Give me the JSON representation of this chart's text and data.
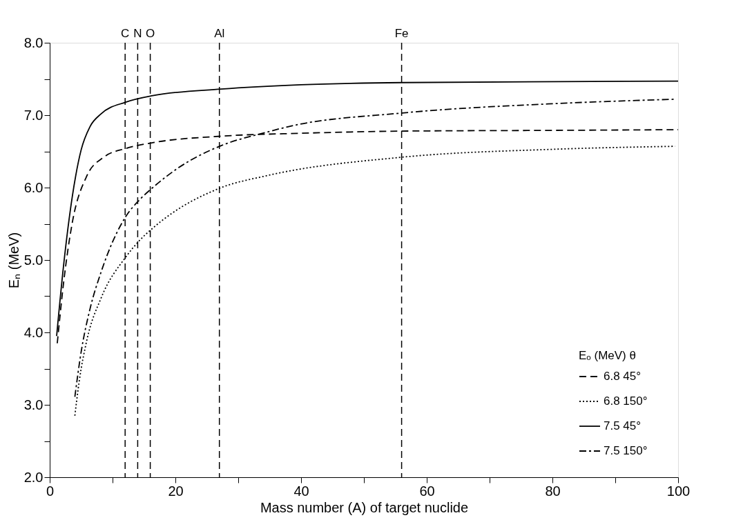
{
  "chart_data": {
    "type": "line",
    "xlabel": "Mass number (A) of target nuclide",
    "ylabel": "Eₙ   (MeV)",
    "legend_title": "Eₒ (MeV)   θ",
    "legend": "bottom right",
    "grid": false,
    "xlim": [
      0,
      100
    ],
    "ylim": [
      2,
      8
    ],
    "xticks": [
      0,
      {
        "value": 10,
        "label": null
      },
      20,
      {
        "value": 30,
        "label": null
      },
      40,
      {
        "value": 50,
        "label": null
      },
      60,
      {
        "value": 70,
        "label": null
      },
      80,
      {
        "value": 90,
        "label": null
      },
      100
    ],
    "yticks": [
      {
        "value": 2,
        "label": "2.0"
      },
      {
        "value": 2.5,
        "label": null
      },
      {
        "value": 3,
        "label": "3.0"
      },
      {
        "value": 3.5,
        "label": null
      },
      {
        "value": 4,
        "label": "4.0"
      },
      {
        "value": 4.5,
        "label": null
      },
      {
        "value": 5,
        "label": "5.0"
      },
      {
        "value": 5.5,
        "label": null
      },
      {
        "value": 6,
        "label": "6.0"
      },
      {
        "value": 6.5,
        "label": null
      },
      {
        "value": 7,
        "label": "7.0"
      },
      {
        "value": 7.5,
        "label": null
      },
      {
        "value": 8,
        "label": "8.0"
      }
    ],
    "series": [
      {
        "name": "6.8      45°",
        "color": "#000000",
        "line_style": "dashed",
        "x": [
          1.2,
          2.2,
          3.6,
          5.9,
          8.6,
          12.1,
          16.4,
          27.3,
          40,
          56,
          80,
          100
        ],
        "values": [
          3.85,
          4.68,
          5.52,
          6.16,
          6.42,
          6.54,
          6.62,
          6.71,
          6.75,
          6.78,
          6.79,
          6.8
        ]
      },
      {
        "name": "6.8    150°",
        "color": "#000000",
        "line_style": "dotted",
        "x": [
          4,
          4.7,
          5.9,
          8.2,
          12.1,
          14.4,
          16.4,
          27.3,
          34.3,
          56.1,
          80.5,
          99.5
        ],
        "values": [
          2.85,
          3.33,
          3.89,
          4.48,
          5.04,
          5.28,
          5.44,
          6.0,
          6.16,
          6.42,
          6.53,
          6.57
        ]
      },
      {
        "name": "7.5      45°",
        "color": "#000000",
        "line_style": "solid",
        "x": [
          1.1,
          2.2,
          3.6,
          5,
          6.4,
          8.2,
          12.1,
          16.4,
          27.3,
          40,
          56,
          100
        ],
        "values": [
          3.95,
          4.92,
          5.88,
          6.52,
          6.84,
          7.02,
          7.18,
          7.27,
          7.36,
          7.42,
          7.45,
          7.47
        ]
      },
      {
        "name": "7.5    150°",
        "color": "#000000",
        "line_style": "dashdot",
        "x": [
          4,
          5,
          6.4,
          8.2,
          12.1,
          14.4,
          16.4,
          20.6,
          27.3,
          34.3,
          37.9,
          56.1,
          80.5,
          99.5
        ],
        "values": [
          3.11,
          3.73,
          4.32,
          4.84,
          5.6,
          5.84,
          6.0,
          6.28,
          6.58,
          6.76,
          6.84,
          7.03,
          7.16,
          7.22
        ]
      }
    ],
    "ref_lines": [
      {
        "axis": "x",
        "value": 12,
        "label": "C",
        "color": "#000000",
        "line_style": "dashed"
      },
      {
        "axis": "x",
        "value": 14,
        "label": "N",
        "color": "#000000",
        "line_style": "dashed"
      },
      {
        "axis": "x",
        "value": 16,
        "label": "O",
        "color": "#000000",
        "line_style": "dashed"
      },
      {
        "axis": "x",
        "value": 27,
        "label": "Al",
        "color": "#000000",
        "line_style": "dashed"
      },
      {
        "axis": "x",
        "value": 56,
        "label": "Fe",
        "color": "#000000",
        "line_style": "dashed"
      }
    ]
  }
}
